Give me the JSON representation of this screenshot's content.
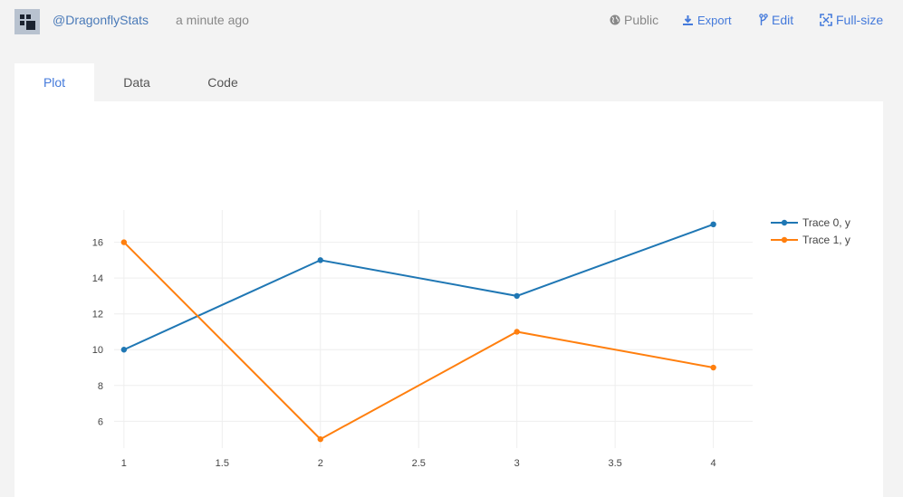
{
  "header": {
    "username": "@DragonflyStats",
    "time": "a minute ago",
    "actions": {
      "public": "Public",
      "export": "Export",
      "edit": "Edit",
      "fullsize": "Full-size"
    }
  },
  "tabs": [
    {
      "label": "Plot",
      "active": true
    },
    {
      "label": "Data",
      "active": false
    },
    {
      "label": "Code",
      "active": false
    }
  ],
  "colors": {
    "trace0": "#1f77b4",
    "trace1": "#ff7f0e",
    "accent": "#447adb"
  },
  "chart_data": {
    "type": "line",
    "title": "",
    "xlabel": "",
    "ylabel": "",
    "x": [
      1,
      2,
      3,
      4
    ],
    "xlim": [
      0.95,
      4.2
    ],
    "ylim": [
      4.5,
      17.8
    ],
    "xticks": [
      "1",
      "1.5",
      "2",
      "2.5",
      "3",
      "3.5",
      "4"
    ],
    "yticks": [
      "6",
      "8",
      "10",
      "12",
      "14",
      "16"
    ],
    "grid": true,
    "legend_position": "top-right",
    "series": [
      {
        "name": "Trace 0, y",
        "values": [
          10,
          15,
          13,
          17
        ],
        "color": "#1f77b4"
      },
      {
        "name": "Trace 1, y",
        "values": [
          16,
          5,
          11,
          9
        ],
        "color": "#ff7f0e"
      }
    ]
  }
}
